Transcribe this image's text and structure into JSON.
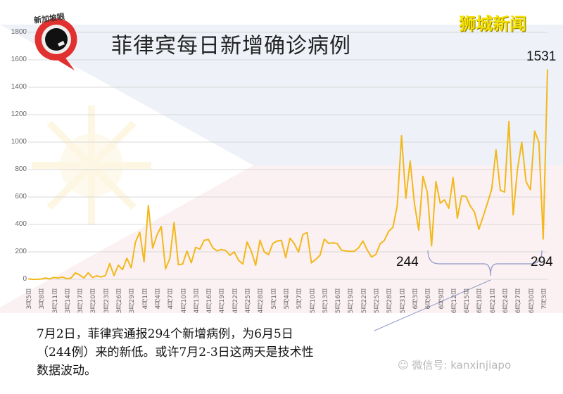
{
  "header": {
    "title": "菲律宾每日新增确诊病例",
    "brand": "狮城新闻",
    "logo_text": "新加坡眼"
  },
  "annotations": {
    "peak_label": "1531",
    "low1_label": "244",
    "low2_label": "294"
  },
  "caption": {
    "line1": "7月2日，菲律宾通报294个新增病例，为6月5日",
    "line2": "（244例）来的新低。或许7月2-3日这两天是技术性",
    "line3": "数据波动。"
  },
  "watermark": "微信号: kanxinjiapo",
  "colors": {
    "line": "#f2b81c",
    "grid": "#d8d8d8",
    "bracket": "#8f98c8",
    "flag_blue": "#eef1f7",
    "flag_red": "#fcf1f2",
    "brand": "#f5e100",
    "logo_red": "#e03030"
  },
  "chart_data": {
    "type": "line",
    "title": "菲律宾每日新增确诊病例",
    "xlabel": "",
    "ylabel": "",
    "ylim": [
      0,
      1800
    ],
    "yticks": [
      0,
      200,
      400,
      600,
      800,
      1000,
      1200,
      1400,
      1600,
      1800
    ],
    "grid": true,
    "legend": "none",
    "x_tick_labels": [
      "3月5日",
      "3月8日",
      "3月11日",
      "3月14日",
      "3月17日",
      "3月20日",
      "3月23日",
      "3月26日",
      "3月29日",
      "4月1日",
      "4月4日",
      "4月7日",
      "4月10日",
      "4月13日",
      "4月16日",
      "4月19日",
      "4月22日",
      "4月25日",
      "4月28日",
      "5月1日",
      "5月4日",
      "5月7日",
      "5月10日",
      "5月13日",
      "5月16日",
      "5月19日",
      "5月22日",
      "5月25日",
      "5月28日",
      "5月31日",
      "6月3日",
      "6月6日",
      "6月9日",
      "6月12日",
      "6月15日",
      "6月18日",
      "6月21日",
      "6月24日",
      "6月27日",
      "6月30日",
      "7月3日"
    ],
    "x_start": "3月5日",
    "x_end": "7月3日",
    "series": [
      {
        "name": "每日新增确诊病例",
        "values": [
          3,
          0,
          0,
          2,
          10,
          3,
          14,
          9,
          17,
          4,
          10,
          47,
          32,
          10,
          48,
          13,
          25,
          17,
          27,
          115,
          27,
          103,
          71,
          154,
          84,
          272,
          343,
          128,
          538,
          227,
          322,
          385,
          76,
          152,
          414,
          106,
          112,
          206,
          120,
          233,
          220,
          284,
          291,
          230,
          207,
          217,
          211,
          175,
          200,
          140,
          112,
          273,
          203,
          102,
          285,
          200,
          180,
          262,
          279,
          284,
          158,
          300,
          260,
          198,
          326,
          341,
          120,
          145,
          175,
          293,
          262,
          266,
          261,
          213,
          207,
          204,
          205,
          230,
          279,
          214,
          163,
          180,
          258,
          284,
          350,
          380,
          539,
          1046,
          590,
          862,
          552,
          359,
          751,
          634,
          244,
          714,
          555,
          579,
          518,
          741,
          446,
          609,
          604,
          535,
          490,
          364,
          457,
          555,
          657,
          943,
          650,
          636,
          1150,
          470,
          802,
          1000,
          713,
          653,
          1080,
          1000,
          294,
          1531
        ]
      }
    ],
    "annotations": [
      {
        "x": "7月3日",
        "value": 1531,
        "text": "1531"
      },
      {
        "x": "6月5日",
        "value": 244,
        "text": "244"
      },
      {
        "x": "7月2日",
        "value": 294,
        "text": "294"
      }
    ]
  }
}
